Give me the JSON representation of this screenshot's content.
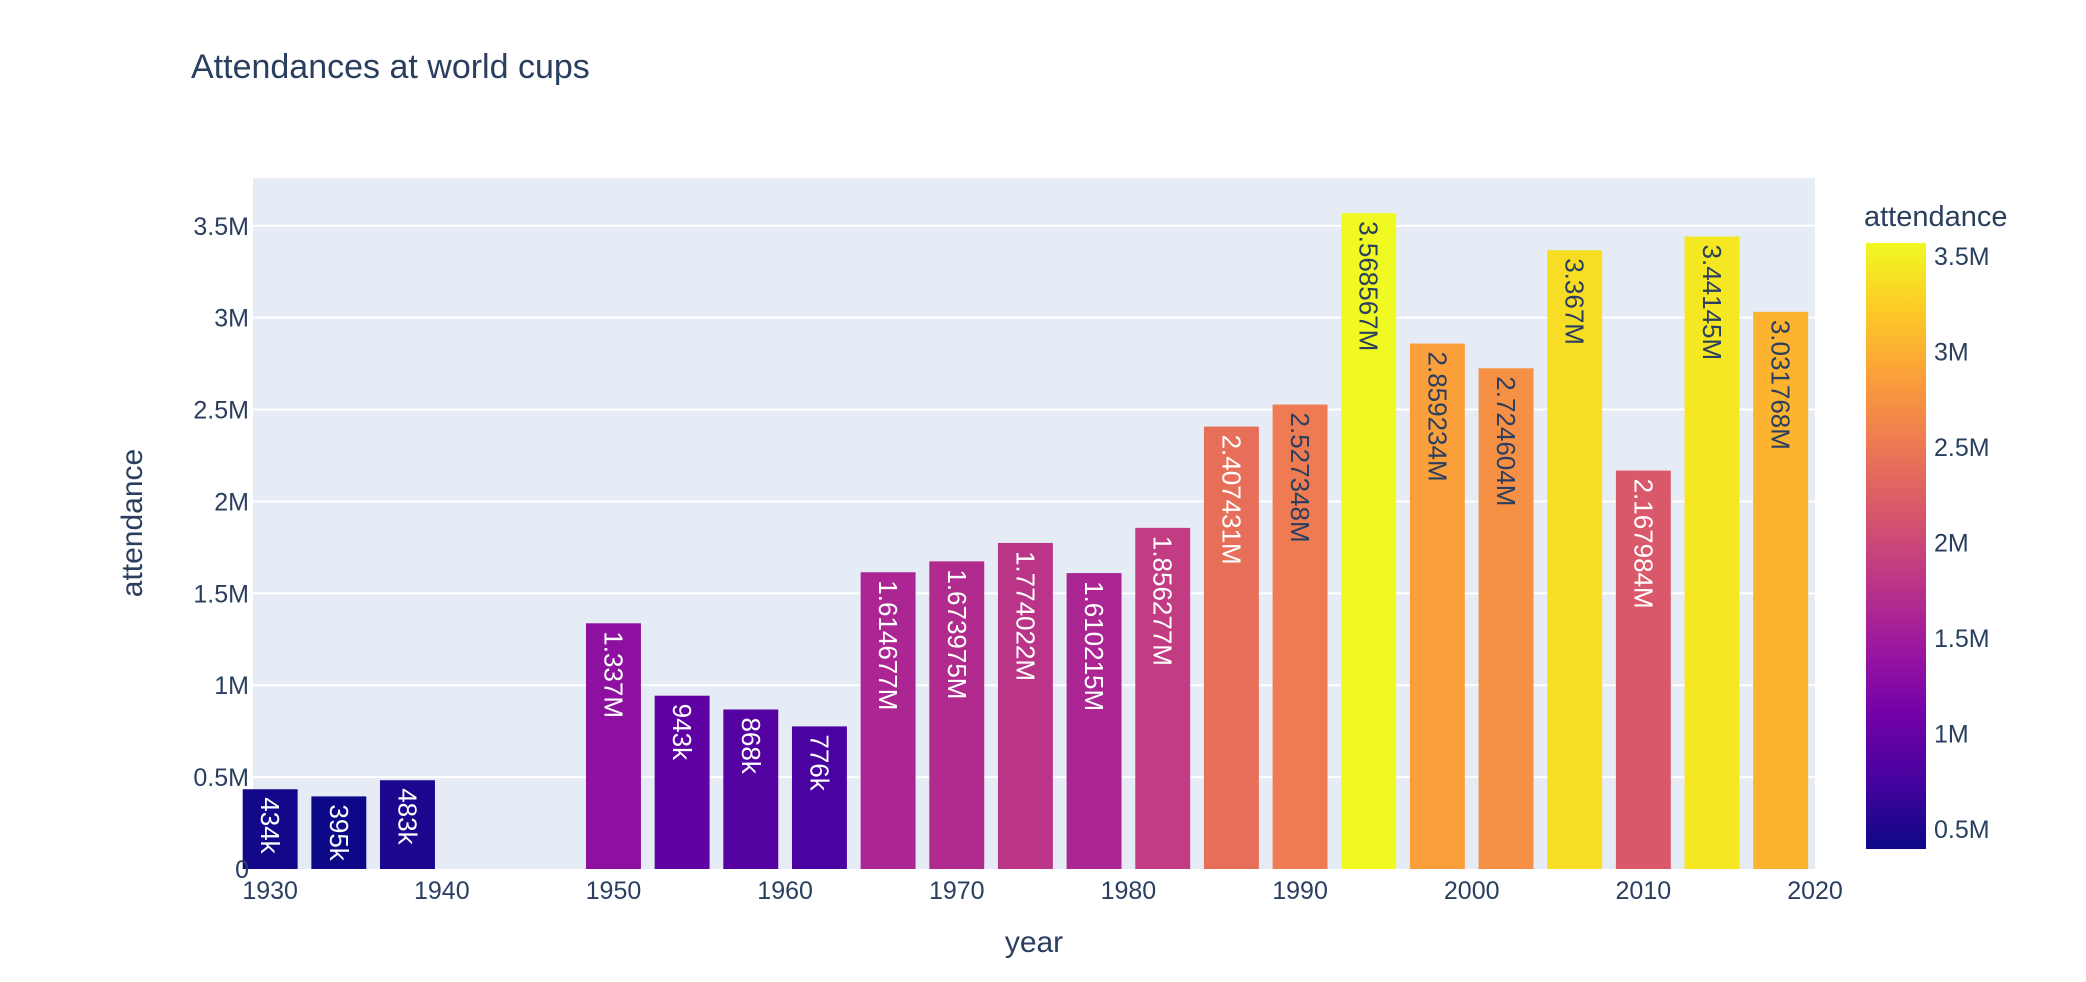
{
  "chart_data": {
    "type": "bar",
    "title": "Attendances at world cups",
    "xlabel": "year",
    "ylabel": "attendance",
    "xlim": [
      1929,
      2020
    ],
    "ylim": [
      0,
      3760000
    ],
    "x_ticks": [
      1930,
      1940,
      1950,
      1960,
      1970,
      1980,
      1990,
      2000,
      2010,
      2020
    ],
    "x_tick_labels": [
      "1930",
      "1940",
      "1950",
      "1960",
      "1970",
      "1980",
      "1990",
      "2000",
      "2010",
      "2020"
    ],
    "y_ticks": [
      0,
      500000,
      1000000,
      1500000,
      2000000,
      2500000,
      3000000,
      3500000
    ],
    "y_tick_labels": [
      "0",
      "0.5M",
      "1M",
      "1.5M",
      "2M",
      "2.5M",
      "3M",
      "3.5M"
    ],
    "bar_width_years": 3.2,
    "grid": true,
    "plot_background": "#e5ecf6",
    "colorscale": "plasma",
    "colorscale_stops": [
      "#0d0887",
      "#46039f",
      "#7201a8",
      "#9c179e",
      "#bd3786",
      "#d8576b",
      "#ed7953",
      "#fb9f3a",
      "#fdca26",
      "#f0f921"
    ],
    "color_range": [
      395000,
      3568567
    ],
    "colorbar": {
      "title": "attendance",
      "ticks": [
        500000,
        1000000,
        1500000,
        2000000,
        2500000,
        3000000,
        3500000
      ],
      "tick_labels": [
        "0.5M",
        "1M",
        "1.5M",
        "2M",
        "2.5M",
        "3M",
        "3.5M"
      ]
    },
    "x": [
      1930,
      1934,
      1938,
      1950,
      1954,
      1958,
      1962,
      1966,
      1970,
      1974,
      1978,
      1982,
      1986,
      1990,
      1994,
      1998,
      2002,
      2006,
      2010,
      2014,
      2018
    ],
    "values": [
      434000,
      395000,
      483000,
      1337000,
      943000,
      868000,
      776000,
      1614677,
      1673975,
      1774022,
      1610215,
      1856277,
      2407431,
      2527348,
      3568567,
      2859234,
      2724604,
      3367000,
      2167984,
      3441450,
      3031768
    ],
    "labels": [
      "434k",
      "395k",
      "483k",
      "1.337M",
      "943k",
      "868k",
      "776k",
      "1.614677M",
      "1.673975M",
      "1.774022M",
      "1.610215M",
      "1.856277M",
      "2.407431M",
      "2.527348M",
      "3.568567M",
      "2.859234M",
      "2.724604M",
      "3.367M",
      "2.167984M",
      "3.44145M",
      "3.031768M"
    ]
  }
}
